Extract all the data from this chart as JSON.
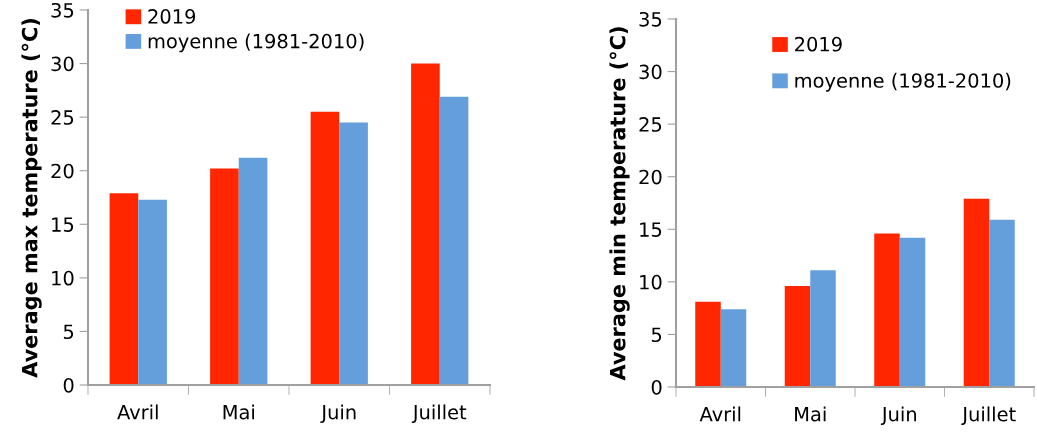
{
  "chart_data": [
    {
      "type": "bar",
      "ylabel": "Average max temperature (°C)",
      "categories": [
        "Avril",
        "Mai",
        "Juin",
        "Juillet"
      ],
      "series": [
        {
          "name": "2019",
          "color": "#ff2600",
          "values": [
            17.9,
            20.2,
            25.5,
            30.0
          ]
        },
        {
          "name": "moyenne (1981-2010)",
          "color": "#659fdb",
          "values": [
            17.3,
            21.2,
            24.5,
            26.9
          ]
        }
      ],
      "ylim": [
        0,
        35
      ],
      "yticks": [
        0,
        5,
        10,
        15,
        20,
        25,
        30,
        35
      ],
      "grid": false,
      "legend": "top left"
    },
    {
      "type": "bar",
      "ylabel": "Average min temperature (°C)",
      "categories": [
        "Avril",
        "Mai",
        "Juin",
        "Juillet"
      ],
      "series": [
        {
          "name": "2019",
          "color": "#ff2600",
          "values": [
            8.1,
            9.6,
            14.6,
            17.9
          ]
        },
        {
          "name": "moyenne (1981-2010)",
          "color": "#659fdb",
          "values": [
            7.4,
            11.1,
            14.2,
            15.9
          ]
        }
      ],
      "ylim": [
        0,
        35
      ],
      "yticks": [
        0,
        5,
        10,
        15,
        20,
        25,
        30,
        35
      ],
      "grid": false,
      "legend": "top"
    }
  ]
}
